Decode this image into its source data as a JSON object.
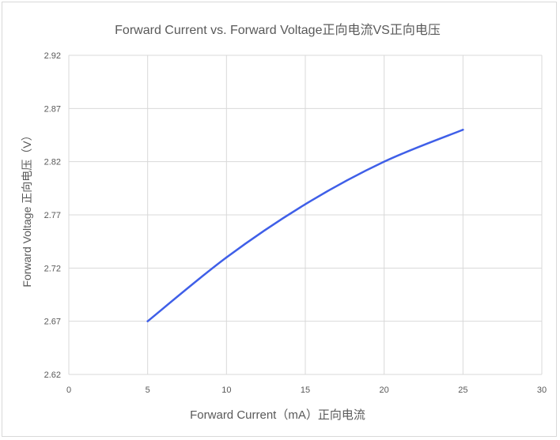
{
  "chart_data": {
    "type": "line",
    "title": "Forward Current vs. Forward Voltage正向电流VS正向电压",
    "xlabel": "Forward Current（mA）正向电流",
    "ylabel": "Forward Voltage  正向电压（V）",
    "xlim": [
      0,
      30
    ],
    "ylim": [
      2.62,
      2.92
    ],
    "xticks": [
      "0",
      "5",
      "10",
      "15",
      "20",
      "25",
      "30"
    ],
    "yticks": [
      "2.62",
      "2.67",
      "2.72",
      "2.77",
      "2.82",
      "2.87",
      "2.92"
    ],
    "grid": true,
    "series": [
      {
        "color": "#3f5fe8",
        "x": [
          5,
          10,
          15,
          20,
          25
        ],
        "y": [
          2.67,
          2.73,
          2.78,
          2.82,
          2.85
        ]
      }
    ]
  }
}
